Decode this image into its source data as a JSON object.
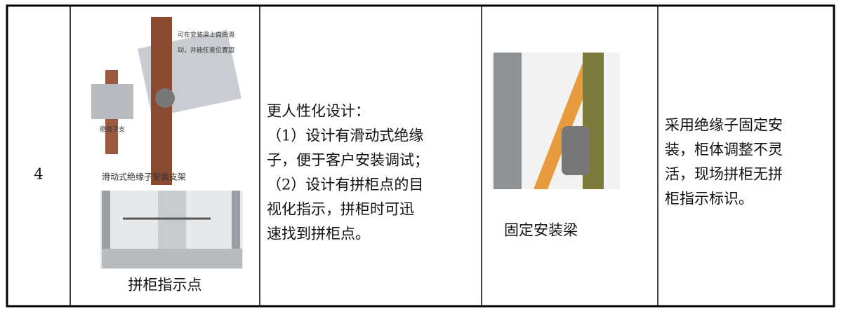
{
  "table": {
    "rows": [
      {
        "number": "4",
        "image_notes": [
          "可在安装梁上自由滑",
          "动，并能任意位置固",
          "绝缘子支"
        ],
        "image_caption": "滑动式绝缘子安装支架",
        "image2_caption": "拼柜指示点",
        "new_design": [
          "更人性化设计：",
          "（1）设计有滑动式绝缘",
          "子，便于客户安装调试；",
          "（2）设计有拼柜点的目",
          "视化指示，拼柜时可迅",
          "速找到拼柜点。"
        ],
        "old_image_caption": "固定安装梁",
        "old_design": [
          "采用绝缘子固定安",
          "装，柜体调整不灵",
          "活，现场拼柜无拼",
          "柜指示标识。"
        ]
      }
    ]
  }
}
